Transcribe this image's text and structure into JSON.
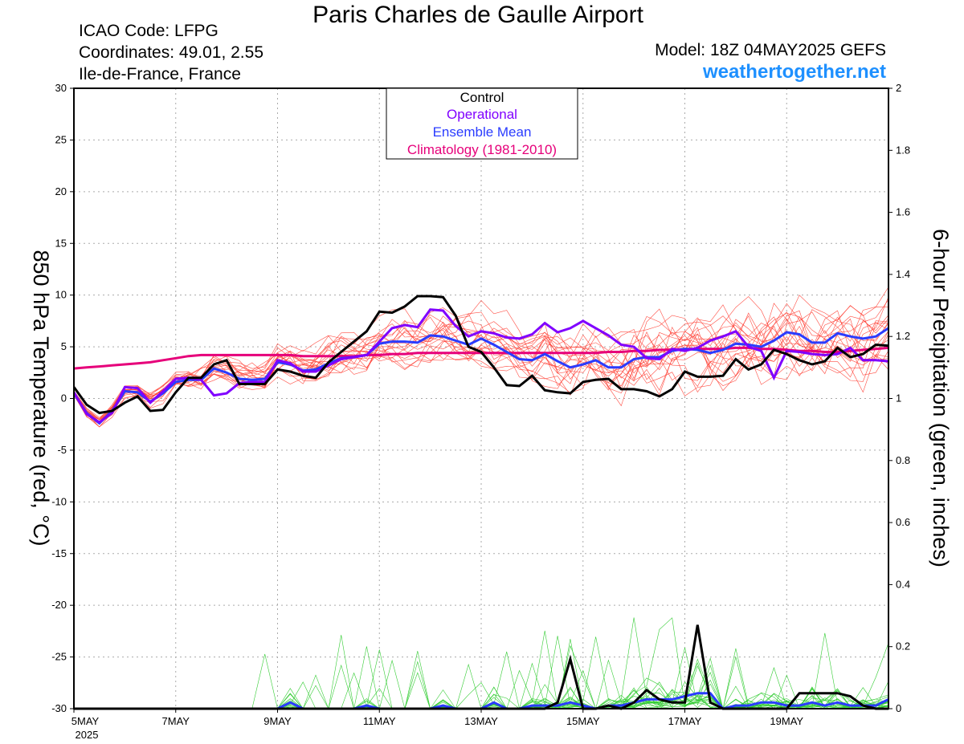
{
  "header": {
    "title": "Paris Charles de Gaulle Airport",
    "icao": "ICAO Code: LFPG",
    "coords": "Coordinates: 49.01, 2.55",
    "region": "Ile-de-France, France",
    "model": "Model: 18Z 04MAY2025 GEFS",
    "site": "weathertogether.net"
  },
  "colors": {
    "members": "#ff3b30",
    "precip_members": "#33cc33",
    "control": "#000000",
    "operational": "#8000ff",
    "mean": "#2a3cff",
    "climatology": "#e6007a",
    "grid": "#aaaaaa"
  },
  "chart_data": {
    "type": "line",
    "xlim": [
      0,
      64
    ],
    "x_unit": "6-hour steps from 00Z 05MAY2025",
    "x_ticks": [
      {
        "step": 0,
        "label": "5MAY"
      },
      {
        "step": 8,
        "label": "7MAY"
      },
      {
        "step": 16,
        "label": "9MAY"
      },
      {
        "step": 24,
        "label": "11MAY"
      },
      {
        "step": 32,
        "label": "13MAY"
      },
      {
        "step": 40,
        "label": "15MAY"
      },
      {
        "step": 48,
        "label": "17MAY"
      },
      {
        "step": 56,
        "label": "19MAY"
      }
    ],
    "x_year": "2025",
    "y_left": {
      "label": "850 hPa Temperature (red, °C)",
      "lim": [
        -30,
        30
      ],
      "ticks": [
        "30",
        "25",
        "20",
        "15",
        "10",
        "5",
        "0",
        "-5",
        "-10",
        "-15",
        "-20",
        "-25",
        "-30"
      ]
    },
    "y_right": {
      "label": "6-hour Precipitation (green, inches)",
      "lim": [
        0,
        2
      ],
      "ticks": [
        "2",
        "1.8",
        "1.6",
        "1.4",
        "1.2",
        "1",
        "0.8",
        "0.6",
        "0.4",
        "0.2",
        "0"
      ]
    },
    "legend": {
      "position": "top-center",
      "entries": [
        {
          "label": "Control",
          "key": "control"
        },
        {
          "label": "Operational",
          "key": "operational"
        },
        {
          "label": "Ensemble Mean",
          "key": "mean"
        },
        {
          "label": "Climatology (1981-2010)",
          "key": "climatology"
        }
      ]
    },
    "temperature": {
      "control": [
        1.1,
        -0.6,
        -1.4,
        -1.2,
        -0.4,
        0.2,
        -1.2,
        -1.1,
        0.6,
        2.0,
        2.0,
        3.3,
        3.7,
        1.4,
        1.4,
        1.4,
        2.8,
        2.6,
        2.2,
        2.0,
        3.5,
        4.5,
        5.5,
        6.5,
        8.4,
        8.3,
        8.9,
        9.9,
        9.9,
        9.8,
        8.0,
        5.0,
        4.5,
        3.0,
        1.3,
        1.2,
        2.2,
        0.8,
        0.6,
        0.5,
        1.6,
        1.8,
        1.9,
        0.9,
        0.9,
        0.7,
        0.2,
        0.9,
        2.6,
        2.1,
        2.1,
        2.2,
        3.8,
        2.8,
        3.3,
        4.7,
        4.3,
        3.7,
        3.3,
        3.6,
        4.9,
        4.0,
        4.3,
        5.2,
        5.1
      ],
      "operational": [
        0.6,
        -1.5,
        -2.3,
        -1.4,
        1.1,
        1.0,
        -0.4,
        0.7,
        1.9,
        2.0,
        1.8,
        0.3,
        0.5,
        1.5,
        1.6,
        1.6,
        3.7,
        3.4,
        2.6,
        2.6,
        3.2,
        3.8,
        4.0,
        4.2,
        5.5,
        6.8,
        7.1,
        6.9,
        8.6,
        8.5,
        7.0,
        6.0,
        6.5,
        6.3,
        5.9,
        5.8,
        6.2,
        7.3,
        6.4,
        6.8,
        7.5,
        6.8,
        6.1,
        5.2,
        5.0,
        3.9,
        3.8,
        4.8,
        4.6,
        4.9,
        5.6,
        6.0,
        6.5,
        5.0,
        4.6,
        2.0,
        4.6,
        4.5,
        4.3,
        4.2,
        4.3,
        4.9,
        3.7,
        3.7,
        3.6
      ],
      "mean": [
        0.5,
        -1.4,
        -2.4,
        -1.2,
        0.7,
        0.6,
        -0.3,
        0.5,
        1.6,
        1.8,
        1.8,
        2.9,
        2.5,
        1.9,
        1.8,
        1.9,
        3.5,
        3.3,
        2.7,
        2.8,
        3.4,
        3.9,
        4.0,
        4.2,
        5.3,
        5.5,
        5.5,
        5.4,
        6.1,
        6.0,
        5.6,
        5.2,
        5.8,
        5.2,
        4.5,
        3.8,
        3.7,
        4.3,
        3.6,
        3.0,
        3.3,
        3.7,
        3.0,
        3.0,
        3.8,
        4.0,
        4.0,
        4.6,
        4.8,
        4.7,
        4.4,
        4.7,
        5.3,
        5.2,
        5.0,
        5.6,
        6.4,
        6.2,
        5.4,
        5.4,
        6.3,
        6.0,
        5.8,
        6.0,
        6.8
      ],
      "climatology": [
        2.9,
        3.0,
        3.1,
        3.2,
        3.3,
        3.4,
        3.5,
        3.7,
        3.9,
        4.1,
        4.2,
        4.2,
        4.2,
        4.2,
        4.2,
        4.2,
        4.2,
        4.2,
        4.1,
        4.1,
        4.1,
        4.1,
        4.1,
        4.2,
        4.2,
        4.3,
        4.3,
        4.4,
        4.4,
        4.4,
        4.4,
        4.4,
        4.4,
        4.4,
        4.4,
        4.4,
        4.4,
        4.4,
        4.4,
        4.4,
        4.4,
        4.4,
        4.5,
        4.5,
        4.6,
        4.6,
        4.7,
        4.7,
        4.8,
        4.8,
        4.8,
        4.8,
        4.9,
        4.9,
        4.8,
        4.8,
        4.7,
        4.6,
        4.6,
        4.5,
        4.5,
        4.6,
        4.7,
        4.8,
        4.9
      ]
    },
    "precipitation": {
      "control": [
        0,
        0,
        0,
        0,
        0,
        0,
        0,
        0,
        0,
        0,
        0,
        0,
        0,
        0,
        0,
        0,
        0,
        0,
        0,
        0,
        0,
        0,
        0,
        0,
        0,
        0,
        0,
        0,
        0,
        0,
        0,
        0,
        0,
        0,
        0,
        0,
        0,
        0,
        0.02,
        0.16,
        0,
        0,
        0.01,
        0,
        0.02,
        0.06,
        0.03,
        0.02,
        0.02,
        0.27,
        0.02,
        0,
        0,
        0,
        0,
        0,
        0,
        0.05,
        0.05,
        0.05,
        0.05,
        0.04,
        0.01,
        0,
        0
      ],
      "mean": [
        0,
        0,
        0,
        0,
        0,
        0,
        0,
        0,
        0,
        0,
        0,
        0,
        0,
        0,
        0,
        0,
        0,
        0.02,
        0,
        0,
        0,
        0,
        0,
        0.01,
        0,
        0,
        0,
        0,
        0,
        0.01,
        0,
        0,
        0,
        0.02,
        0,
        0,
        0.01,
        0.01,
        0.01,
        0.02,
        0.01,
        0,
        0.01,
        0.01,
        0.02,
        0.03,
        0.03,
        0.03,
        0.04,
        0.05,
        0.05,
        0,
        0.01,
        0.01,
        0.02,
        0.02,
        0.01,
        0.01,
        0.02,
        0.01,
        0.02,
        0.01,
        0.01,
        0.01,
        0.03
      ]
    }
  }
}
